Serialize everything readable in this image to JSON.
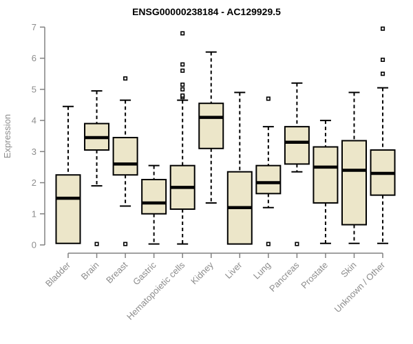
{
  "chart_data": {
    "type": "boxplot",
    "title": "ENSG00000238184 - AC129929.5",
    "xlabel": "",
    "ylabel": "Expression",
    "ylim": [
      0,
      7
    ],
    "yticks": [
      0,
      1,
      2,
      3,
      4,
      5,
      6,
      7
    ],
    "grid": false,
    "legend_position": "none",
    "categories": [
      "Bladder",
      "Brain",
      "Breast",
      "Gastric",
      "Hematopoietic cells",
      "Kidney",
      "Liver",
      "Lung",
      "Pancreas",
      "Prostate",
      "Skin",
      "Unknown / Other"
    ],
    "boxes": [
      {
        "category": "Bladder",
        "whisker_low": 0.05,
        "q1": 0.05,
        "median": 1.5,
        "q3": 2.25,
        "whisker_high": 4.45,
        "outliers": []
      },
      {
        "category": "Brain",
        "whisker_low": 1.9,
        "q1": 3.05,
        "median": 3.45,
        "q3": 3.9,
        "whisker_high": 4.95,
        "outliers": [
          0.03
        ]
      },
      {
        "category": "Breast",
        "whisker_low": 1.25,
        "q1": 2.25,
        "median": 2.6,
        "q3": 3.45,
        "whisker_high": 4.65,
        "outliers": [
          0.03,
          5.35
        ]
      },
      {
        "category": "Gastric",
        "whisker_low": 0.03,
        "q1": 1.0,
        "median": 1.35,
        "q3": 2.1,
        "whisker_high": 2.55,
        "outliers": []
      },
      {
        "category": "Hematopoietic cells",
        "whisker_low": 0.03,
        "q1": 1.15,
        "median": 1.85,
        "q3": 2.55,
        "whisker_high": 4.65,
        "outliers": [
          4.75,
          4.8,
          5.0,
          5.15,
          5.6,
          5.8,
          6.8
        ]
      },
      {
        "category": "Kidney",
        "whisker_low": 1.35,
        "q1": 3.1,
        "median": 4.1,
        "q3": 4.55,
        "whisker_high": 6.2,
        "outliers": []
      },
      {
        "category": "Liver",
        "whisker_low": 0.03,
        "q1": 0.03,
        "median": 1.2,
        "q3": 2.35,
        "whisker_high": 4.9,
        "outliers": []
      },
      {
        "category": "Lung",
        "whisker_low": 1.2,
        "q1": 1.65,
        "median": 2.0,
        "q3": 2.55,
        "whisker_high": 3.8,
        "outliers": [
          0.03,
          4.7
        ]
      },
      {
        "category": "Pancreas",
        "whisker_low": 2.35,
        "q1": 2.6,
        "median": 3.3,
        "q3": 3.8,
        "whisker_high": 5.2,
        "outliers": [
          0.03
        ]
      },
      {
        "category": "Prostate",
        "whisker_low": 0.05,
        "q1": 1.35,
        "median": 2.5,
        "q3": 3.15,
        "whisker_high": 4.0,
        "outliers": []
      },
      {
        "category": "Skin",
        "whisker_low": 0.05,
        "q1": 0.65,
        "median": 2.4,
        "q3": 3.35,
        "whisker_high": 4.9,
        "outliers": []
      },
      {
        "category": "Unknown / Other",
        "whisker_low": 0.05,
        "q1": 1.6,
        "median": 2.3,
        "q3": 3.05,
        "whisker_high": 5.05,
        "outliers": [
          5.5,
          5.95,
          6.95
        ]
      }
    ],
    "colors": {
      "box_fill": "#ECE6C9",
      "box_border": "#000000",
      "median": "#000000",
      "whisker": "#000000",
      "outlier_border": "#000000",
      "outlier_fill": "#ffffff",
      "axis_line": "#808080",
      "axis_text": "#8C8C8C",
      "title_text": "#000000",
      "background": "#FFFFFF"
    }
  }
}
